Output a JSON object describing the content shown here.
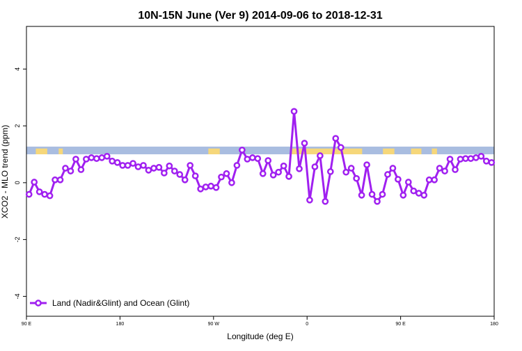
{
  "chart_data": {
    "type": "line",
    "title": "10N-15N June (Ver 9)   2014-09-06 to 2018-12-31",
    "x_label": "Longitude (deg E)",
    "y_label": "XCO2 - MLO trend (ppm)",
    "xlim": [
      90,
      540
    ],
    "xticks": [
      {
        "value": 90,
        "label": "90 E"
      },
      180,
      {
        "value": 270,
        "label": "90 W"
      },
      {
        "value": 360,
        "label": "0"
      },
      {
        "value": 450,
        "label": "90 E"
      },
      {
        "value": 540,
        "label": "180"
      }
    ],
    "ylim": [
      -4.7,
      5.5
    ],
    "yticks": [
      -4,
      -2,
      0,
      2,
      4
    ],
    "legend": "bottom-left",
    "map_strip": {
      "y_range": [
        1.0,
        1.27
      ],
      "ocean_color": "#a9bde0",
      "land_color": "#f6d77a",
      "land_spans": [
        [
          99,
          110
        ],
        [
          121,
          125
        ],
        [
          265,
          276
        ],
        [
          344,
          413
        ],
        [
          433,
          444
        ],
        [
          460,
          470
        ],
        [
          480,
          485
        ]
      ]
    },
    "series": [
      {
        "name": "Land (Nadir&Glint) and Ocean (Glint)",
        "color": "#a020f0",
        "x": [
          92.5,
          97.5,
          102.5,
          107.5,
          112.5,
          117.5,
          122.5,
          127.5,
          132.5,
          137.5,
          142.5,
          147.5,
          152.5,
          157.5,
          162.5,
          167.5,
          172.5,
          177.5,
          182.5,
          187.5,
          192.5,
          197.5,
          202.5,
          207.5,
          212.5,
          217.5,
          222.5,
          227.5,
          232.5,
          237.5,
          242.5,
          247.5,
          252.5,
          257.5,
          262.5,
          267.5,
          272.5,
          277.5,
          282.5,
          287.5,
          292.5,
          297.5,
          302.5,
          307.5,
          312.5,
          317.5,
          322.5,
          327.5,
          332.5,
          337.5,
          342.5,
          347.5,
          352.5,
          357.5,
          362.5,
          367.5,
          372.5,
          377.5,
          382.5,
          387.5,
          392.5,
          397.5,
          402.5,
          407.5,
          412.5,
          417.5,
          422.5,
          427.5,
          432.5,
          437.5,
          442.5,
          447.5,
          452.5,
          457.5,
          462.5,
          467.5,
          472.5,
          477.5,
          482.5,
          487.5,
          492.5,
          497.5,
          502.5,
          507.5,
          512.5,
          517.5,
          522.5,
          527.5,
          532.5,
          537.5
        ],
        "values": [
          -0.41,
          0.02,
          -0.32,
          -0.41,
          -0.46,
          0.1,
          0.1,
          0.51,
          0.41,
          0.83,
          0.46,
          0.83,
          0.88,
          0.85,
          0.88,
          0.93,
          0.76,
          0.71,
          0.61,
          0.61,
          0.68,
          0.56,
          0.61,
          0.44,
          0.51,
          0.54,
          0.34,
          0.59,
          0.41,
          0.29,
          0.1,
          0.61,
          0.24,
          -0.22,
          -0.15,
          -0.12,
          -0.17,
          0.2,
          0.32,
          0,
          0.61,
          1.15,
          0.83,
          0.88,
          0.85,
          0.32,
          0.78,
          0.27,
          0.37,
          0.59,
          0.22,
          2.51,
          0.49,
          1.39,
          -0.61,
          0.56,
          0.95,
          -0.66,
          0.39,
          1.56,
          1.24,
          0.37,
          0.51,
          0.15,
          -0.44,
          0.63,
          -0.41,
          -0.66,
          -0.41,
          0.29,
          0.51,
          0.12,
          -0.44,
          0.02,
          -0.29,
          -0.37,
          -0.44,
          0.1,
          0.1,
          0.51,
          0.41,
          0.83,
          0.46,
          0.83,
          0.85,
          0.85,
          0.88,
          0.93,
          0.76,
          0.71
        ]
      }
    ]
  }
}
